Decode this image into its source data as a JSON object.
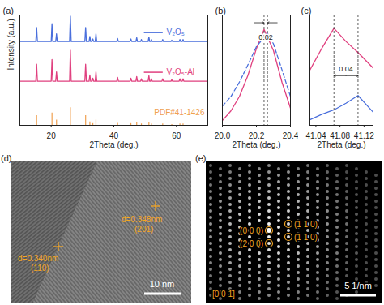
{
  "chart_data": [
    {
      "type": "line",
      "title": "(a)",
      "x_label": "2Theta (deg.)",
      "y_label": "Intensity (a.u.)",
      "xlim": [
        10,
        70
      ],
      "xticks": [
        20,
        40,
        60
      ],
      "ylim": [
        0,
        100
      ],
      "tick_labels": "x",
      "legend": "right",
      "series": [
        {
          "name": "V₂O₅",
          "type": "line",
          "color": "#4a6fdc",
          "x": [
            10,
            15.1,
            15.35,
            15.6,
            20.01,
            20.26,
            20.51,
            21.45,
            21.7,
            21.95,
            25.88,
            26.13,
            26.38,
            30.75,
            31.0,
            31.25,
            32.1,
            32.35,
            32.6,
            33.05,
            33.3,
            33.55,
            34.05,
            34.3,
            34.55,
            40.95,
            41.2,
            41.45,
            45.2,
            45.45,
            45.7,
            47.05,
            47.3,
            47.55,
            48.55,
            48.8,
            49.05,
            50.95,
            51.2,
            51.45,
            51.75,
            52.0,
            52.25,
            55.35,
            55.6,
            55.85,
            58.25,
            58.5,
            58.75,
            60.85,
            61.1,
            61.35,
            61.85,
            62.1,
            62.35,
            70
          ],
          "values": [
            76,
            76,
            88.7,
            76,
            76,
            92.1,
            76,
            76,
            82.9,
            76,
            76,
            99,
            76,
            76,
            88.7,
            76,
            76,
            80.6,
            76,
            76,
            78.3,
            76,
            76,
            82.9,
            76,
            76,
            78.8,
            76,
            76,
            78.3,
            76,
            76,
            79.5,
            76,
            76,
            77.8,
            76,
            76,
            80.1,
            76,
            76,
            77.8,
            76,
            76,
            77.8,
            76,
            76,
            77.2,
            76,
            76,
            77.8,
            76,
            76,
            77.8,
            76,
            76
          ]
        },
        {
          "name": "V₂O₅-Al",
          "type": "line",
          "color": "#e0407f",
          "x": [
            10,
            15.1,
            15.35,
            15.6,
            20.01,
            20.26,
            20.51,
            21.45,
            21.7,
            21.95,
            25.88,
            26.13,
            26.38,
            30.75,
            31.0,
            31.25,
            32.1,
            32.35,
            32.6,
            33.05,
            33.3,
            33.55,
            34.05,
            34.3,
            34.55,
            40.95,
            41.2,
            41.45,
            45.2,
            45.45,
            45.7,
            47.05,
            47.3,
            47.55,
            48.55,
            48.8,
            49.05,
            50.95,
            51.2,
            51.45,
            51.75,
            52.0,
            52.25,
            55.35,
            55.6,
            55.85,
            58.25,
            58.5,
            58.75,
            60.85,
            61.1,
            61.35,
            61.85,
            62.1,
            62.35,
            70
          ],
          "values": [
            40,
            40,
            55.4,
            40,
            40,
            59.6,
            40,
            40,
            48.4,
            40,
            40,
            68,
            40,
            40,
            55.4,
            40,
            40,
            45.6,
            40,
            40,
            42.8,
            40,
            40,
            48.4,
            40,
            40,
            43.4,
            40,
            40,
            42.8,
            40,
            40,
            44.2,
            40,
            40,
            42.2,
            40,
            40,
            45,
            40,
            40,
            42.2,
            40,
            40,
            42.2,
            40,
            40,
            41.4,
            40,
            40,
            42.2,
            40,
            40,
            42.2,
            40,
            40
          ]
        },
        {
          "name": "PDF#41-1426",
          "type": "bar",
          "color": "#f0a050",
          "x": [
            15.35,
            20.26,
            21.7,
            26.13,
            31.0,
            32.35,
            33.3,
            34.3,
            41.2,
            45.45,
            47.3,
            48.8,
            51.2,
            52.0,
            55.6,
            58.5,
            61.1,
            62.1
          ],
          "values": [
            8.8,
            11.2,
            4.8,
            16,
            8.8,
            3.2,
            1.6,
            4.8,
            1.9,
            1.6,
            2.4,
            1.3,
            2.9,
            1.3,
            1.3,
            0.8,
            1.3,
            1.3
          ]
        }
      ]
    },
    {
      "type": "line",
      "title": "(b)",
      "x_label": "2Theta (deg.)",
      "xlim": [
        20.0,
        20.4
      ],
      "xticks": [
        {
          "value": 20,
          "label": "20.0"
        },
        20.2,
        20.4
      ],
      "ylim": [
        0,
        115
      ],
      "tick_labels": "x",
      "annotations": [
        {
          "text": "0.02",
          "x": [
            20.245,
            20.265
          ]
        }
      ],
      "series": [
        {
          "color": "#e0407f",
          "line_style": "solid",
          "x": [
            20.0,
            20.05,
            20.1,
            20.15,
            20.2,
            20.245,
            20.3,
            20.35,
            20.4
          ],
          "values": [
            5,
            15,
            30,
            52,
            80,
            100,
            78,
            45,
            18
          ]
        },
        {
          "color": "#4a6fdc",
          "line_style": "dashed",
          "x": [
            20.0,
            20.05,
            20.1,
            20.15,
            20.2,
            20.265,
            20.3,
            20.35,
            20.4
          ],
          "values": [
            20,
            30,
            45,
            63,
            82,
            96,
            85,
            58,
            30
          ]
        }
      ]
    },
    {
      "type": "line",
      "title": "(c)",
      "x_label": "2Theta (deg.)",
      "xlim": [
        41.03,
        41.135
      ],
      "xticks": [
        41.04,
        41.08,
        41.12
      ],
      "ylim": [
        0,
        100
      ],
      "tick_labels": "x",
      "annotations": [
        {
          "text": "0.04",
          "x": [
            41.07,
            41.11
          ]
        }
      ],
      "series": [
        {
          "color": "#e0407f",
          "line_style": "solid",
          "x": [
            41.03,
            41.05,
            41.07,
            41.09,
            41.11,
            41.135
          ],
          "values": [
            50,
            70,
            88,
            76,
            66,
            52
          ]
        },
        {
          "color": "#4a6fdc",
          "line_style": "solid",
          "x": [
            41.03,
            41.05,
            41.07,
            41.09,
            41.11,
            41.135
          ],
          "values": [
            5,
            10,
            14,
            20,
            27,
            12
          ]
        }
      ]
    }
  ],
  "images": [
    {
      "label": "(d)",
      "annotations": [
        {
          "text": "d=0.340nm",
          "index": "(110)"
        },
        {
          "text": "d=0.348nm",
          "index": "(201)"
        }
      ],
      "scale_bar": "10 nm"
    },
    {
      "label": "(e)",
      "spots": [
        "(0 0 0)",
        "(2 0 0)",
        "(1 1̄ 0)",
        "(1 1 0)"
      ],
      "zone_axis": "[0 0 1̄]",
      "scale_bar": "5 1/nm"
    }
  ]
}
